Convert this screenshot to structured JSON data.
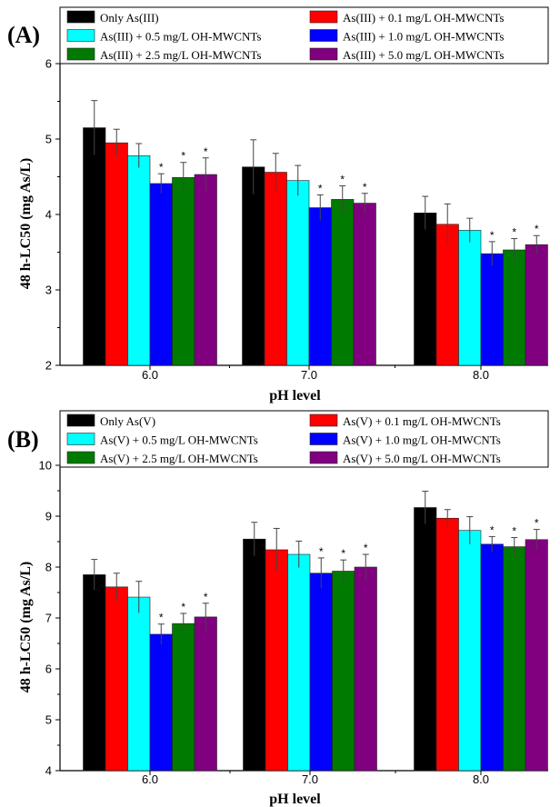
{
  "chart_data": [
    {
      "type": "bar",
      "panel_label": "(A)",
      "xlabel": "pH level",
      "ylabel": "48 h-LC50 (mg As/L)",
      "ylim": [
        2,
        6
      ],
      "yticks": [
        "2",
        "3",
        "4",
        "5",
        "6"
      ],
      "categories": [
        "6.0",
        "7.0",
        "8.0"
      ],
      "legend_placement": "top",
      "grid": false,
      "series": [
        {
          "name": "Only As(III)",
          "color": "#000000",
          "values": [
            5.15,
            4.63,
            4.02
          ],
          "errors": [
            0.36,
            0.36,
            0.22
          ],
          "significant": [
            false,
            false,
            false
          ]
        },
        {
          "name": "As(III) + 0.1 mg/L OH-MWCNTs",
          "color": "#ff0000",
          "values": [
            4.95,
            4.56,
            3.87
          ],
          "errors": [
            0.18,
            0.25,
            0.27
          ],
          "significant": [
            false,
            false,
            false
          ]
        },
        {
          "name": "As(III) + 0.5 mg/L OH-MWCNTs",
          "color": "#00ffff",
          "values": [
            4.78,
            4.45,
            3.79
          ],
          "errors": [
            0.16,
            0.2,
            0.16
          ],
          "significant": [
            false,
            false,
            false
          ]
        },
        {
          "name": "As(III) + 1.0 mg/L OH-MWCNTs",
          "color": "#0000ff",
          "values": [
            4.41,
            4.09,
            3.48
          ],
          "errors": [
            0.13,
            0.17,
            0.16
          ],
          "significant": [
            true,
            true,
            true
          ]
        },
        {
          "name": "As(III) + 2.5 mg/L OH-MWCNTs",
          "color": "#007a00",
          "values": [
            4.49,
            4.2,
            3.53
          ],
          "errors": [
            0.2,
            0.18,
            0.15
          ],
          "significant": [
            true,
            true,
            true
          ]
        },
        {
          "name": "As(III) + 5.0 mg/L OH-MWCNTs",
          "color": "#800080",
          "values": [
            4.53,
            4.15,
            3.6
          ],
          "errors": [
            0.22,
            0.13,
            0.12
          ],
          "significant": [
            true,
            true,
            true
          ]
        }
      ]
    },
    {
      "type": "bar",
      "panel_label": "(B)",
      "xlabel": "pH level",
      "ylabel": "48 h-LC50 (mg As/L)",
      "ylim": [
        4,
        10
      ],
      "yticks": [
        "4",
        "5",
        "6",
        "7",
        "8",
        "9",
        "10"
      ],
      "categories": [
        "6.0",
        "7.0",
        "8.0"
      ],
      "legend_placement": "top",
      "grid": false,
      "series": [
        {
          "name": "Only As(V)",
          "color": "#000000",
          "values": [
            7.85,
            8.55,
            9.17
          ],
          "errors": [
            0.3,
            0.33,
            0.32
          ],
          "significant": [
            false,
            false,
            false
          ]
        },
        {
          "name": "As(V) + 0.1 mg/L OH-MWCNTs",
          "color": "#ff0000",
          "values": [
            7.61,
            8.34,
            8.96
          ],
          "errors": [
            0.27,
            0.42,
            0.17
          ],
          "significant": [
            false,
            false,
            false
          ]
        },
        {
          "name": "As(V) + 0.5 mg/L OH-MWCNTs",
          "color": "#00ffff",
          "values": [
            7.41,
            8.25,
            8.72
          ],
          "errors": [
            0.31,
            0.26,
            0.27
          ],
          "significant": [
            false,
            false,
            false
          ]
        },
        {
          "name": "As(V) + 1.0 mg/L OH-MWCNTs",
          "color": "#0000ff",
          "values": [
            6.68,
            7.88,
            8.45
          ],
          "errors": [
            0.2,
            0.3,
            0.15
          ],
          "significant": [
            true,
            true,
            true
          ]
        },
        {
          "name": "As(V) + 2.5 mg/L OH-MWCNTs",
          "color": "#007a00",
          "values": [
            6.89,
            7.92,
            8.4
          ],
          "errors": [
            0.2,
            0.22,
            0.18
          ],
          "significant": [
            true,
            true,
            true
          ]
        },
        {
          "name": "As(V) + 5.0 mg/L OH-MWCNTs",
          "color": "#800080",
          "values": [
            7.02,
            8.0,
            8.54
          ],
          "errors": [
            0.27,
            0.25,
            0.2
          ],
          "significant": [
            true,
            true,
            true
          ]
        }
      ]
    }
  ],
  "significance_marker": "*"
}
